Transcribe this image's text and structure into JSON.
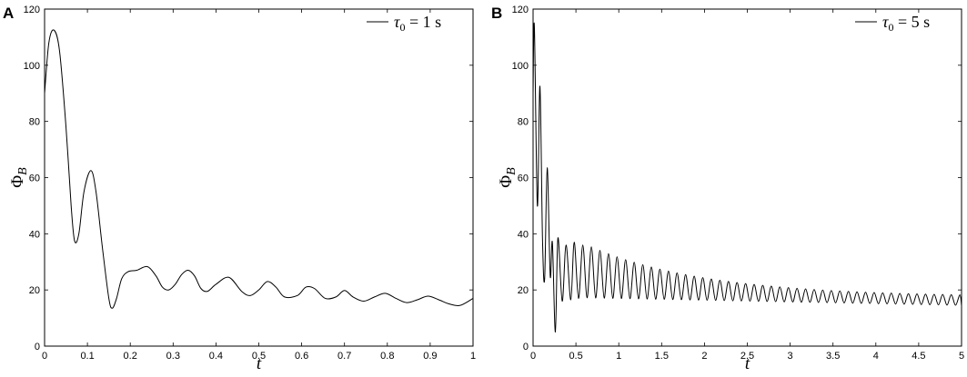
{
  "chart_data": [
    {
      "type": "line",
      "panel_label": "A",
      "xlabel": "t",
      "ylabel_main": "Φ",
      "ylabel_sub": "B",
      "legend_entry": {
        "prefix": "τ",
        "subscript": "0",
        "suffix": " = 1 s"
      },
      "legend_position": "top-right",
      "xlim": [
        0,
        1
      ],
      "ylim": [
        0,
        120
      ],
      "xticks": [
        0,
        0.1,
        0.2,
        0.3,
        0.4,
        0.5,
        0.6,
        0.7,
        0.8,
        0.9,
        1
      ],
      "xtick_labels": [
        "0",
        "0.1",
        "0.2",
        "0.3",
        "0.4",
        "0.5",
        "0.6",
        "0.7",
        "0.8",
        "0.9",
        "1"
      ],
      "yticks": [
        0,
        20,
        40,
        60,
        80,
        100,
        120
      ],
      "ytick_labels": [
        "0",
        "20",
        "40",
        "60",
        "80",
        "100",
        "120"
      ],
      "grid": false,
      "series": [
        {
          "color": "#000000",
          "x": [
            0,
            0.01,
            0.022,
            0.035,
            0.05,
            0.062,
            0.07,
            0.08,
            0.092,
            0.108,
            0.12,
            0.135,
            0.15,
            0.158,
            0.168,
            0.18,
            0.195,
            0.215,
            0.24,
            0.26,
            0.275,
            0.29,
            0.305,
            0.32,
            0.335,
            0.35,
            0.365,
            0.38,
            0.4,
            0.43,
            0.46,
            0.48,
            0.5,
            0.52,
            0.54,
            0.56,
            0.59,
            0.61,
            0.63,
            0.655,
            0.68,
            0.7,
            0.72,
            0.745,
            0.77,
            0.795,
            0.82,
            0.845,
            0.87,
            0.895,
            0.92,
            0.945,
            0.97,
            1.0
          ],
          "y": [
            90,
            108,
            112.5,
            105,
            78,
            50,
            37.5,
            40,
            55,
            62.5,
            55,
            35,
            17,
            13.5,
            17,
            24,
            26.5,
            27,
            28.3,
            25,
            21,
            20,
            22,
            25.5,
            27,
            25,
            20.5,
            19.5,
            22,
            24.5,
            19.5,
            18,
            20,
            23,
            21,
            17.5,
            18,
            21,
            20.5,
            17,
            17.5,
            19.8,
            17.5,
            16,
            17.5,
            18.8,
            17,
            15.5,
            16.5,
            17.8,
            16.5,
            15,
            14.5,
            17
          ]
        }
      ]
    },
    {
      "type": "line",
      "panel_label": "B",
      "xlabel": "t",
      "ylabel_main": "Φ",
      "ylabel_sub": "B",
      "legend_entry": {
        "prefix": "τ",
        "subscript": "0",
        "suffix": " = 5 s"
      },
      "legend_position": "top-right",
      "xlim": [
        0,
        5
      ],
      "ylim": [
        0,
        120
      ],
      "xticks": [
        0,
        0.5,
        1,
        1.5,
        2,
        2.5,
        3,
        3.5,
        4,
        4.5,
        5
      ],
      "xtick_labels": [
        "0",
        "0.5",
        "1",
        "1.5",
        "2",
        "2.5",
        "3",
        "3.5",
        "4",
        "4.5",
        "5"
      ],
      "yticks": [
        0,
        20,
        40,
        60,
        80,
        100,
        120
      ],
      "ytick_labels": [
        "0",
        "20",
        "40",
        "60",
        "80",
        "100",
        "120"
      ],
      "grid": false,
      "series": [
        {
          "color": "#000000",
          "x": [
            0,
            0.015,
            0.05,
            0.08,
            0.11,
            0.135,
            0.165,
            0.2,
            0.225,
            0.26,
            0.29,
            0.34,
            0.385,
            0.44,
            0.48,
            0.53,
            0.58,
            0.63
          ],
          "y": [
            90,
            114,
            50,
            92.5,
            38,
            24,
            63.5,
            25,
            37,
            5,
            38.5,
            16,
            36,
            16.5,
            37,
            17,
            36,
            17.2
          ],
          "oscillation": {
            "start": 0.63,
            "end": 5.0,
            "period": 0.1,
            "upper_start": 36,
            "upper_end": 17.5,
            "lower_start": 17.2,
            "lower_end": 14.5
          }
        }
      ]
    }
  ]
}
